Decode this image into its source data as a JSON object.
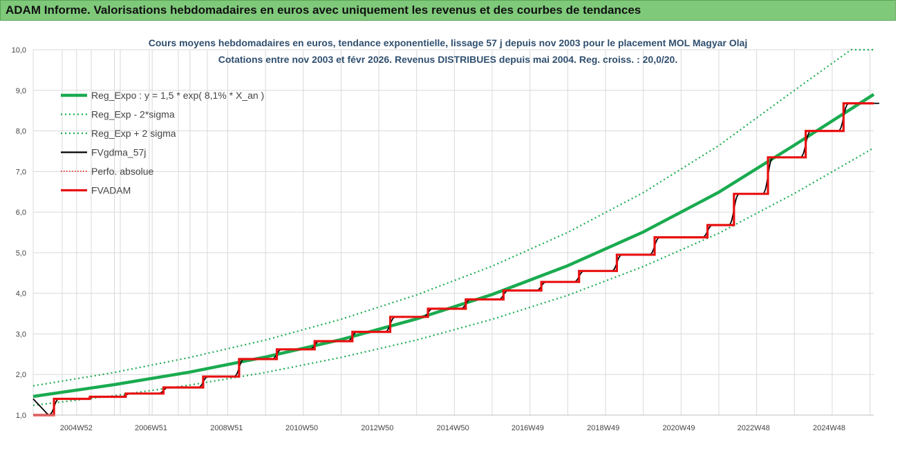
{
  "header": {
    "title": "ADAM Informe. Valorisations hebdomadaires en euros avec uniquement les revenus et des courbes de tendances"
  },
  "chart_data": {
    "type": "line",
    "title": "Cours moyens hebdomadaires en euros, tendance exponentielle, lissage 57 j depuis nov 2003 pour le placement MOL Magyar Olaj",
    "subtitle": "Cotations entre nov 2003 et févr 2026. Revenus DISTRIBUES depuis mai 2004. Reg. croiss. : 20,0/20.",
    "ylim": [
      1.0,
      10.0
    ],
    "y_ticks": [
      "1,0",
      "2,0",
      "3,0",
      "4,0",
      "5,0",
      "6,0",
      "7,0",
      "8,0",
      "9,0",
      "10,0"
    ],
    "x_range_years": [
      2003.85,
      2026.1
    ],
    "x_tick_labels": [
      "2004W52",
      "2006W51",
      "2008W51",
      "2010W50",
      "2012W50",
      "2014W50",
      "2016W49",
      "2018W49",
      "2020W49",
      "2022W48",
      "2024W48"
    ],
    "x_tick_years": [
      2004.99,
      2006.97,
      2008.97,
      2010.96,
      2012.96,
      2014.96,
      2016.94,
      2018.94,
      2020.94,
      2022.92,
      2024.92
    ],
    "grid": true,
    "legend_position": "top-left",
    "colors": {
      "trend": "#1aab50",
      "band": "#1aab50",
      "smooth": "#000000",
      "perf": "#e00000",
      "adam": "#e81010",
      "grid": "#d9d9d9",
      "banner": "#7fc97a"
    },
    "series": [
      {
        "name": "Reg_Expo : y = 1,5 * exp( 8,1% *  X_an )",
        "style": "solid-thick",
        "x": [
          2003.85,
          2006,
          2008,
          2010,
          2012,
          2014,
          2016,
          2018,
          2020,
          2022,
          2024,
          2026.1
        ],
        "y": [
          1.46,
          1.75,
          2.06,
          2.43,
          2.86,
          3.37,
          3.97,
          4.68,
          5.51,
          6.49,
          7.65,
          8.9
        ]
      },
      {
        "name": "Reg_Exp - 2*sigma",
        "style": "dotted",
        "x": [
          2003.85,
          2006,
          2008,
          2010,
          2012,
          2014,
          2016,
          2018,
          2020,
          2022,
          2024,
          2026.1
        ],
        "y": [
          1.24,
          1.48,
          1.74,
          2.05,
          2.42,
          2.85,
          3.36,
          3.95,
          4.66,
          5.48,
          6.46,
          7.58
        ]
      },
      {
        "name": "Reg_Exp + 2 sigma",
        "style": "dotted",
        "x": [
          2003.85,
          2006,
          2008,
          2010,
          2012,
          2014,
          2016,
          2018,
          2020,
          2022,
          2024,
          2025.5,
          2026.1
        ],
        "y": [
          1.72,
          2.05,
          2.42,
          2.85,
          3.36,
          3.96,
          4.67,
          5.5,
          6.48,
          7.64,
          9.0,
          10.0,
          10.0
        ]
      },
      {
        "name": "FVgdma_57j",
        "style": "solid-thin",
        "x": [],
        "y": []
      },
      {
        "name": "Perfo. absolue",
        "style": "dotted-red",
        "x": [],
        "y": []
      },
      {
        "name": "FVADAM",
        "style": "step",
        "x": [
          2003.85,
          2004.4,
          2005.35,
          2006.3,
          2007.3,
          2008.35,
          2009.3,
          2010.3,
          2011.3,
          2012.3,
          2013.3,
          2014.3,
          2015.3,
          2016.3,
          2017.3,
          2018.3,
          2019.3,
          2020.3,
          2021.7,
          2022.4,
          2023.3,
          2024.3,
          2025.3,
          2026.1
        ],
        "y": [
          1.0,
          1.4,
          1.45,
          1.53,
          1.68,
          1.95,
          2.38,
          2.62,
          2.82,
          3.05,
          3.42,
          3.62,
          3.85,
          4.07,
          4.28,
          4.55,
          4.95,
          5.38,
          5.68,
          6.45,
          7.35,
          8.0,
          8.68,
          8.68
        ]
      }
    ]
  }
}
